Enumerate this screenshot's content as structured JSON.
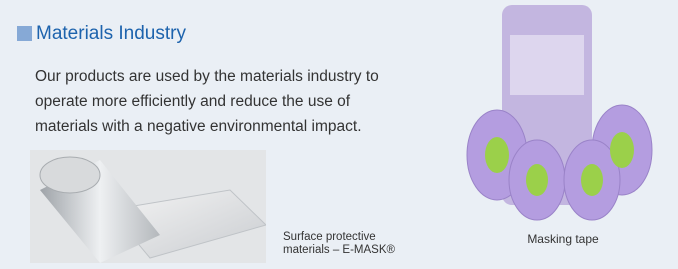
{
  "section": {
    "title": "Materials Industry",
    "body_lines": [
      "Our products are used by the materials industry to",
      "operate more efficiently and reduce the use of",
      "materials with a negative environmental impact."
    ],
    "images": [
      {
        "caption_lines": [
          "Surface protective",
          "materials – E-MASK®"
        ]
      },
      {
        "caption_lines": [
          "Masking tape"
        ]
      }
    ]
  }
}
